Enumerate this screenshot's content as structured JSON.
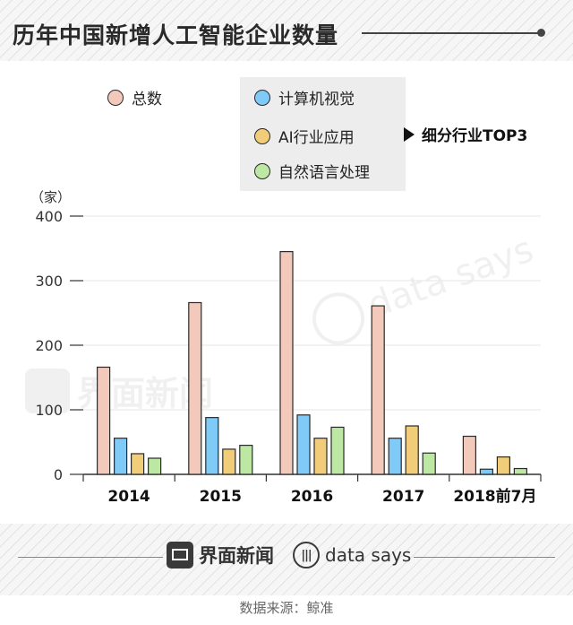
{
  "title": "历年中国新增人工智能企业数量",
  "top3_label": "细分行业TOP3",
  "source": "数据来源：鲸准",
  "logos": {
    "jiemian": "界面新闻",
    "datasays": "data says"
  },
  "watermarks": {
    "jiemian": "界面新闻",
    "datasays": "data says"
  },
  "chart_data": {
    "type": "bar",
    "ylabel": "（家）",
    "ylim": [
      0,
      400
    ],
    "yticks": [
      "0",
      "100",
      "200",
      "300",
      "400"
    ],
    "grid": true,
    "categories": [
      "2014",
      "2015",
      "2016",
      "2017",
      "2018前7月"
    ],
    "series": [
      {
        "name": "总数",
        "color": "#f3c9bb",
        "values": [
          166,
          266,
          345,
          261,
          59
        ]
      },
      {
        "name": "计算机视觉",
        "color": "#7fcaf6",
        "values": [
          56,
          88,
          92,
          56,
          8
        ]
      },
      {
        "name": "AI行业应用",
        "color": "#f2cd79",
        "values": [
          32,
          39,
          56,
          75,
          27
        ]
      },
      {
        "name": "自然语言处理",
        "color": "#bde8a3",
        "values": [
          25,
          45,
          73,
          33,
          9
        ]
      }
    ]
  }
}
